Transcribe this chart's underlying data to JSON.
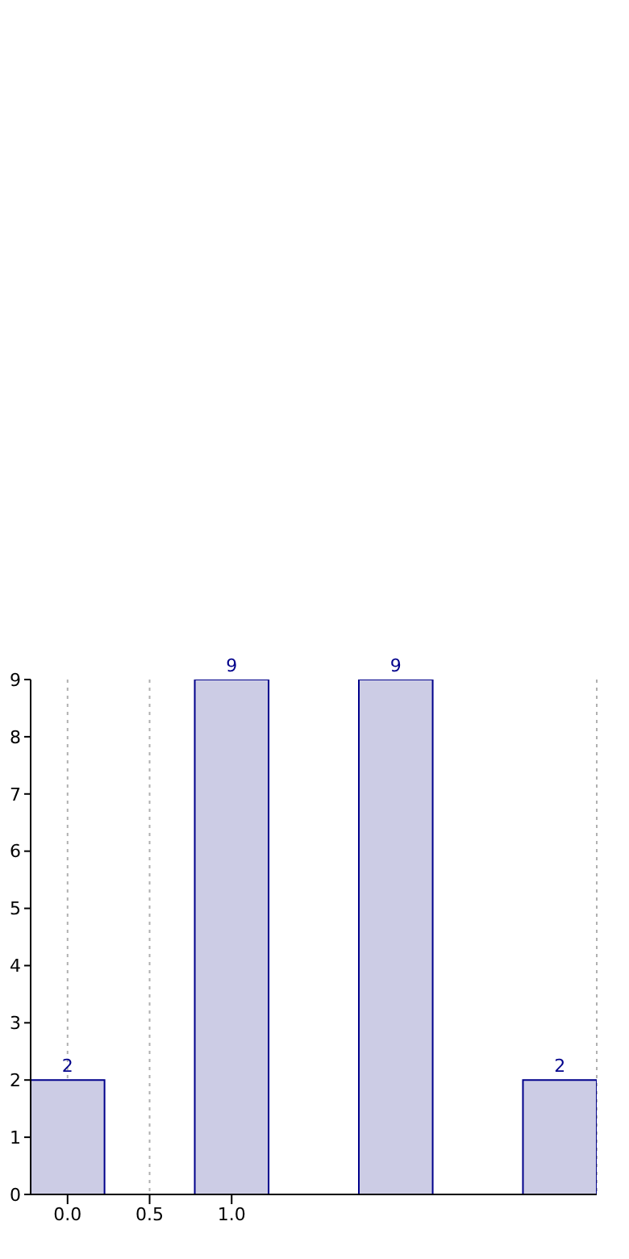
{
  "chart_data": {
    "type": "bar",
    "x": [
      0,
      1,
      2,
      3
    ],
    "values": [
      2,
      9,
      9,
      2
    ],
    "color": "#ccccE5",
    "xlim": [
      -0.225,
      3.225
    ],
    "xticks": [
      {
        "value": 0,
        "label": "0.0"
      },
      {
        "value": 0.5,
        "label": "0.5"
      },
      {
        "value": 1,
        "label": "1.0"
      }
    ],
    "ylim": [
      0,
      9
    ],
    "yticks": [
      0,
      1,
      2,
      3,
      4,
      5,
      6,
      7,
      8,
      9
    ],
    "grid": "x",
    "data_labels": true
  }
}
